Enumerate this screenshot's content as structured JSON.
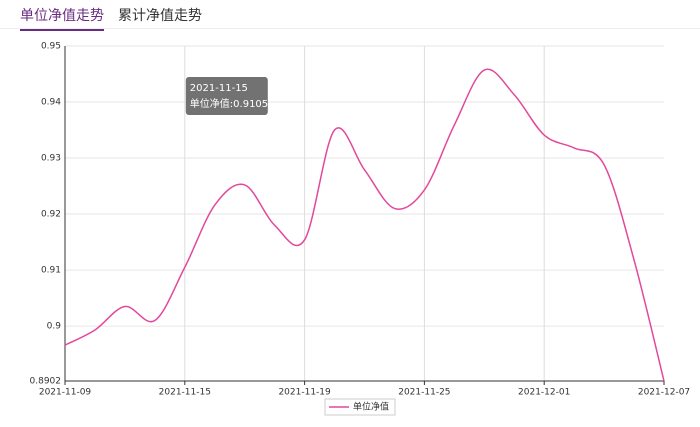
{
  "tabs": [
    "单位净值走势",
    "累计净值走势"
  ],
  "chart_data": {
    "type": "line",
    "categories": [
      "2021-11-09",
      null,
      null,
      null,
      "2021-11-15",
      null,
      null,
      null,
      "2021-11-19",
      null,
      null,
      null,
      "2021-11-25",
      null,
      null,
      null,
      "2021-12-01",
      null,
      null,
      null,
      "2021-12-07"
    ],
    "series": [
      {
        "name": "单位净值",
        "color": "#e2499c",
        "values": [
          0.8966,
          0.8993,
          0.9035,
          0.901,
          0.9105,
          0.9216,
          0.9252,
          0.918,
          0.9154,
          0.935,
          0.9279,
          0.921,
          0.9243,
          0.9359,
          0.9457,
          0.9413,
          0.9341,
          0.9318,
          0.9288,
          0.9118,
          0.8902
        ]
      }
    ],
    "ylim": [
      0.8902,
      0.95
    ],
    "yticks": [
      0.8902,
      0.9,
      0.91,
      0.92,
      0.93,
      0.94,
      0.95
    ],
    "grid": true,
    "legend": "bottom",
    "tooltip": {
      "date": "2021-11-15",
      "text": "单位净值:0.9105"
    }
  }
}
